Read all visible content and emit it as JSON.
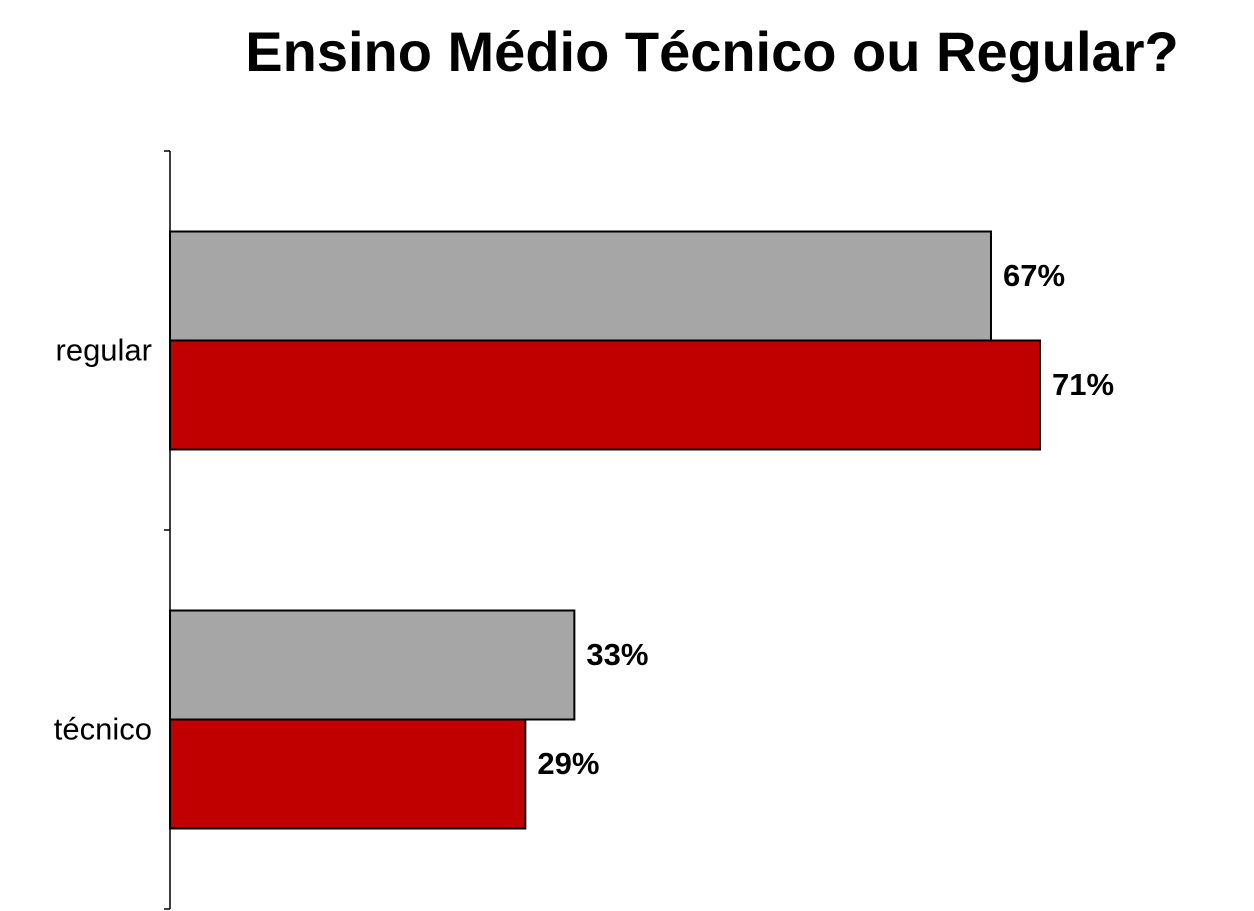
{
  "chart_data": {
    "type": "bar",
    "orientation": "horizontal",
    "title": "Ensino Médio Técnico ou Regular?",
    "categories": [
      "regular",
      "técnico"
    ],
    "series": [
      {
        "color": "#a6a6a6",
        "values": [
          67,
          33
        ],
        "value_labels": [
          "67%",
          "33%"
        ]
      },
      {
        "color": "#c00000",
        "values": [
          71,
          29
        ],
        "value_labels": [
          "71%",
          "29%"
        ]
      }
    ]
  }
}
